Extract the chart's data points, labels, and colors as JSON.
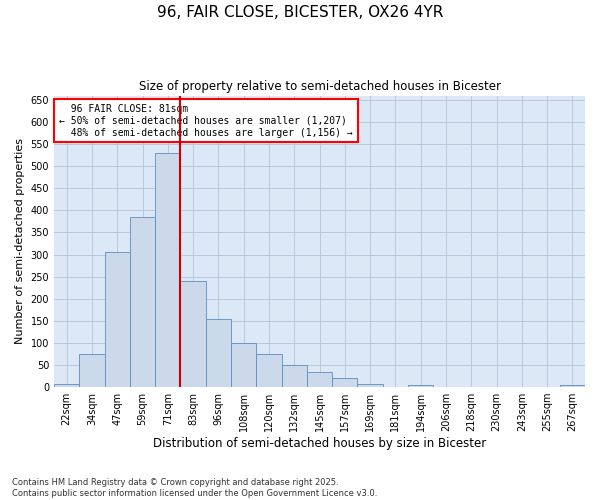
{
  "title": "96, FAIR CLOSE, BICESTER, OX26 4YR",
  "subtitle": "Size of property relative to semi-detached houses in Bicester",
  "xlabel": "Distribution of semi-detached houses by size in Bicester",
  "ylabel": "Number of semi-detached properties",
  "footnote": "Contains HM Land Registry data © Crown copyright and database right 2025.\nContains public sector information licensed under the Open Government Licence v3.0.",
  "bar_color": "#ccd9ea",
  "bar_edge_color": "#5b8dc8",
  "grid_color": "#b8c8dc",
  "background_color": "#dce8f5",
  "vline_color": "#cc0000",
  "bins": [
    "22sqm",
    "34sqm",
    "47sqm",
    "59sqm",
    "71sqm",
    "83sqm",
    "96sqm",
    "108sqm",
    "120sqm",
    "132sqm",
    "145sqm",
    "157sqm",
    "169sqm",
    "181sqm",
    "194sqm",
    "206sqm",
    "218sqm",
    "230sqm",
    "243sqm",
    "255sqm",
    "267sqm"
  ],
  "values": [
    8,
    75,
    305,
    385,
    530,
    240,
    155,
    100,
    75,
    50,
    35,
    20,
    8,
    0,
    5,
    0,
    0,
    0,
    0,
    0,
    5
  ],
  "property_label": "96 FAIR CLOSE: 81sqm",
  "smaller_pct": "50% of semi-detached houses are smaller (1,207)",
  "larger_pct": "48% of semi-detached houses are larger (1,156)",
  "vline_x": 4.5,
  "ylim": [
    0,
    660
  ],
  "yticks": [
    0,
    50,
    100,
    150,
    200,
    250,
    300,
    350,
    400,
    450,
    500,
    550,
    600,
    650
  ]
}
